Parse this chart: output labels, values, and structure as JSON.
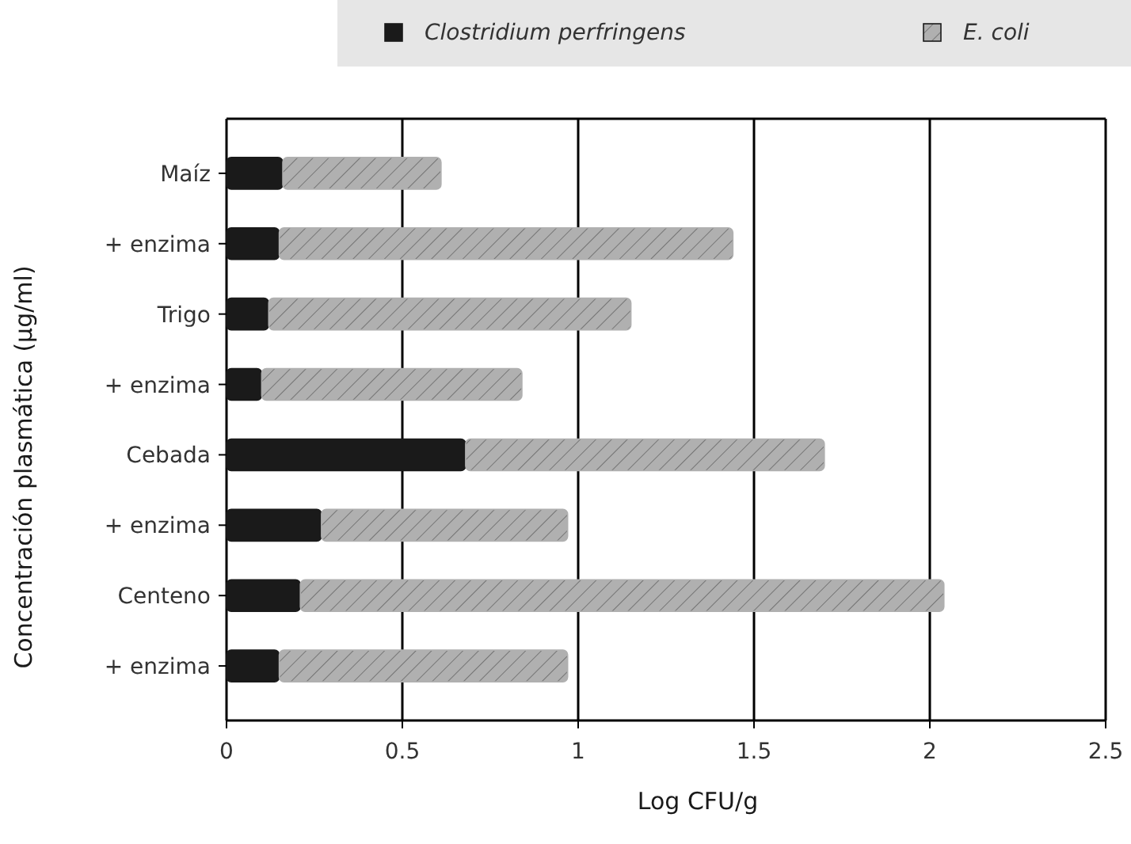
{
  "chart_data": {
    "type": "bar",
    "orientation": "horizontal",
    "stacked": true,
    "xlabel": "Log CFU/g",
    "ylabel": "Concentración plasmática (µg/ml)",
    "categories": [
      "Maíz",
      "+ enzima",
      "Trigo",
      "+ enzima",
      "Cebada",
      "+ enzima",
      "Centeno",
      "+ enzima"
    ],
    "series": [
      {
        "name": "Clostridium perfringens",
        "color": "#1a1a1a",
        "values": [
          0.16,
          0.15,
          0.12,
          0.1,
          0.68,
          0.27,
          0.21,
          0.15
        ]
      },
      {
        "name": "E. coli",
        "color": "#b0b0b0",
        "values": [
          0.45,
          1.29,
          1.03,
          0.74,
          1.02,
          0.7,
          1.83,
          0.82
        ]
      }
    ],
    "xlim": [
      0,
      2.5
    ],
    "xticks": [
      0,
      0.5,
      1,
      1.5,
      2,
      2.5
    ],
    "grid": "x",
    "legend": "top"
  }
}
